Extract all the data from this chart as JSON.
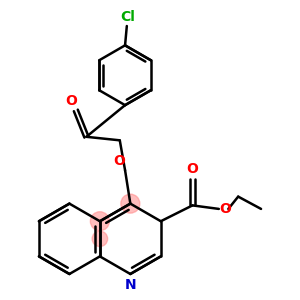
{
  "bg_color": "#ffffff",
  "bond_color": "#000000",
  "bond_width": 1.8,
  "atom_colors": {
    "O": "#ff0000",
    "N": "#0000cc",
    "Cl": "#00aa00"
  },
  "highlight_color": "#ff8888",
  "highlight_alpha": 0.55,
  "figsize": [
    3.0,
    3.0
  ],
  "dpi": 100
}
